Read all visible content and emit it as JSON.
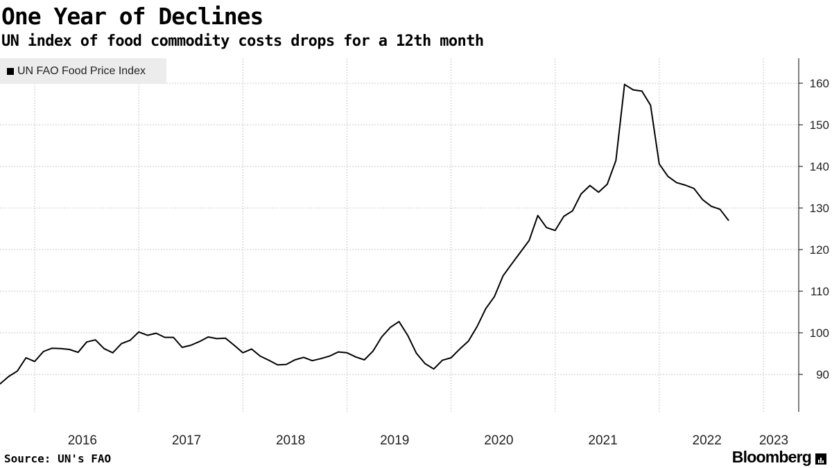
{
  "title": "One Year of Declines",
  "subtitle": "UN index of food commodity costs drops for a 12th month",
  "source": "Source: UN's FAO",
  "brand": "Bloomberg",
  "colors": {
    "line": "#000000",
    "grid": "#c8c8c8",
    "legend_bg": "#ececec"
  },
  "chart_data": {
    "type": "line",
    "title": "One Year of Declines",
    "subtitle": "UN index of food commodity costs drops for a 12th month",
    "legend": [
      "UN FAO Food Price Index"
    ],
    "legend_position": "top-left",
    "xlabel": "",
    "ylabel": "",
    "x_ticks": [
      "2016",
      "2017",
      "2018",
      "2019",
      "2020",
      "2021",
      "2022",
      "2023"
    ],
    "y_ticks": [
      90,
      100,
      110,
      120,
      130,
      140,
      150,
      160
    ],
    "ylim": [
      81,
      166
    ],
    "y_axis_side": "right",
    "grid": true,
    "x_start": "2015-09",
    "x_end": "2023-03",
    "series": [
      {
        "name": "UN FAO Food Price Index",
        "frequency": "monthly",
        "start": "2015-09",
        "values": [
          87.7,
          89.5,
          90.8,
          94.0,
          93.1,
          95.5,
          96.3,
          96.2,
          96.0,
          95.3,
          97.8,
          98.3,
          96.2,
          95.2,
          97.4,
          98.2,
          100.2,
          99.4,
          99.9,
          98.9,
          98.9,
          96.5,
          97.0,
          97.9,
          99.0,
          98.6,
          98.7,
          97.0,
          95.2,
          96.1,
          94.4,
          93.4,
          92.3,
          92.4,
          93.5,
          94.1,
          93.3,
          93.8,
          94.4,
          95.4,
          95.2,
          94.2,
          93.5,
          95.6,
          99.0,
          101.3,
          102.7,
          99.4,
          95.1,
          92.6,
          91.3,
          93.4,
          94.0,
          96.1,
          98.0,
          101.5,
          105.8,
          108.7,
          113.7,
          116.6,
          119.4,
          122.2,
          128.2,
          125.3,
          124.6,
          128.0,
          129.3,
          133.4,
          135.4,
          133.8,
          135.7,
          141.4,
          159.7,
          158.4,
          158.1,
          154.7,
          140.6,
          137.6,
          136.1,
          135.5,
          134.7,
          132.0,
          130.4,
          129.7,
          127.0
        ]
      }
    ]
  }
}
